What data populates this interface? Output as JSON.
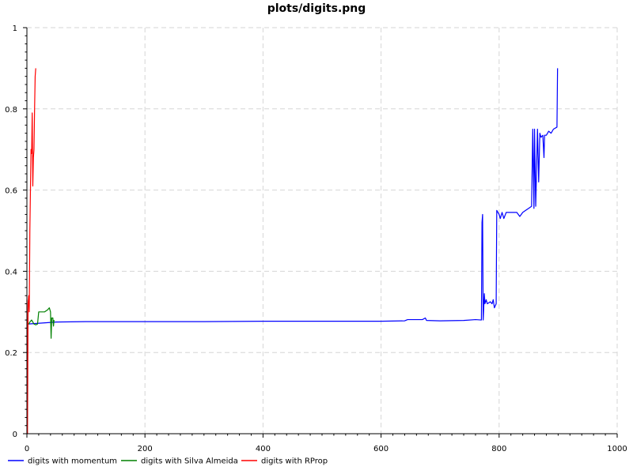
{
  "chart_data": {
    "type": "line",
    "title": "plots/digits.png",
    "xlabel": "",
    "ylabel": "",
    "xlim": [
      0,
      1000
    ],
    "ylim": [
      0,
      1
    ],
    "x_ticks": [
      0,
      200,
      400,
      600,
      800,
      1000
    ],
    "x_tick_labels": [
      "0",
      "200",
      "400",
      "600",
      "800",
      "1000"
    ],
    "y_ticks": [
      0,
      0.2,
      0.4,
      0.6,
      0.8,
      1
    ],
    "y_tick_labels": [
      "0",
      "0.2",
      "0.4",
      "0.6",
      "0.8",
      "1"
    ],
    "grid": true,
    "legend_position": "bottom-left",
    "series": [
      {
        "name": "digits with momentum",
        "color": "#0000ff",
        "points": [
          [
            0,
            0.27
          ],
          [
            50,
            0.275
          ],
          [
            100,
            0.276
          ],
          [
            200,
            0.276
          ],
          [
            300,
            0.276
          ],
          [
            400,
            0.277
          ],
          [
            500,
            0.277
          ],
          [
            600,
            0.277
          ],
          [
            640,
            0.278
          ],
          [
            645,
            0.281
          ],
          [
            670,
            0.281
          ],
          [
            675,
            0.285
          ],
          [
            677,
            0.279
          ],
          [
            700,
            0.278
          ],
          [
            740,
            0.279
          ],
          [
            760,
            0.281
          ],
          [
            770,
            0.28
          ],
          [
            771,
            0.52
          ],
          [
            772,
            0.54
          ],
          [
            773,
            0.28
          ],
          [
            775,
            0.345
          ],
          [
            776,
            0.32
          ],
          [
            778,
            0.33
          ],
          [
            780,
            0.32
          ],
          [
            785,
            0.325
          ],
          [
            788,
            0.32
          ],
          [
            790,
            0.33
          ],
          [
            792,
            0.31
          ],
          [
            795,
            0.32
          ],
          [
            796,
            0.55
          ],
          [
            800,
            0.54
          ],
          [
            802,
            0.53
          ],
          [
            805,
            0.545
          ],
          [
            808,
            0.53
          ],
          [
            812,
            0.545
          ],
          [
            820,
            0.545
          ],
          [
            830,
            0.545
          ],
          [
            835,
            0.535
          ],
          [
            840,
            0.545
          ],
          [
            845,
            0.55
          ],
          [
            850,
            0.555
          ],
          [
            855,
            0.56
          ],
          [
            857,
            0.75
          ],
          [
            859,
            0.555
          ],
          [
            860,
            0.75
          ],
          [
            862,
            0.56
          ],
          [
            865,
            0.75
          ],
          [
            867,
            0.62
          ],
          [
            869,
            0.74
          ],
          [
            871,
            0.73
          ],
          [
            874,
            0.735
          ],
          [
            876,
            0.68
          ],
          [
            877,
            0.735
          ],
          [
            880,
            0.735
          ],
          [
            884,
            0.745
          ],
          [
            888,
            0.74
          ],
          [
            892,
            0.75
          ],
          [
            898,
            0.755
          ],
          [
            899,
            0.9
          ]
        ]
      },
      {
        "name": "digits with Silva Almeida",
        "color": "#008000",
        "points": [
          [
            0,
            0.27
          ],
          [
            3,
            0.27
          ],
          [
            5,
            0.275
          ],
          [
            8,
            0.28
          ],
          [
            12,
            0.27
          ],
          [
            15,
            0.268
          ],
          [
            18,
            0.27
          ],
          [
            20,
            0.3
          ],
          [
            25,
            0.3
          ],
          [
            30,
            0.3
          ],
          [
            35,
            0.305
          ],
          [
            38,
            0.31
          ],
          [
            40,
            0.3
          ],
          [
            41,
            0.235
          ],
          [
            42,
            0.285
          ],
          [
            44,
            0.285
          ],
          [
            45,
            0.265
          ],
          [
            46,
            0.28
          ]
        ]
      },
      {
        "name": "digits with RProp",
        "color": "#ff0000",
        "points": [
          [
            0,
            0.33
          ],
          [
            1,
            0
          ],
          [
            2,
            0.32
          ],
          [
            3,
            0.34
          ],
          [
            4,
            0.3
          ],
          [
            5,
            0.5
          ],
          [
            6,
            0.6
          ],
          [
            7,
            0.7
          ],
          [
            8,
            0.69
          ],
          [
            9,
            0.79
          ],
          [
            10,
            0.61
          ],
          [
            11,
            0.68
          ],
          [
            12,
            0.7
          ],
          [
            13,
            0.8
          ],
          [
            14,
            0.88
          ],
          [
            15,
            0.9
          ]
        ]
      }
    ]
  }
}
